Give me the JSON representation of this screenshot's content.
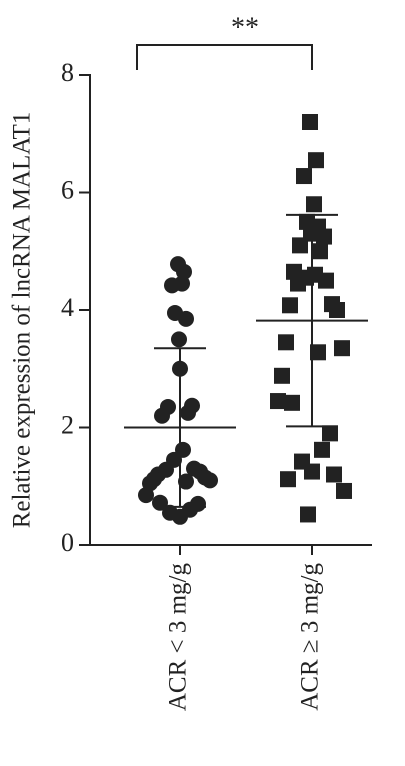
{
  "chart_data": {
    "type": "dotplot",
    "y_label": "Relative expression of lncRNA MALAT1",
    "categories": [
      "ACR < 3 mg/g",
      "ACR ≥ 3 mg/g"
    ],
    "groups": [
      {
        "marker": "circle",
        "color": "#222222",
        "mean": 2.0,
        "sd": 1.35,
        "values": [
          4.78,
          4.65,
          4.42,
          4.45,
          3.95,
          3.85,
          3.5,
          3.0,
          2.37,
          2.35,
          2.25,
          2.2,
          1.62,
          1.45,
          1.3,
          1.28,
          1.25,
          1.2,
          1.15,
          1.12,
          1.1,
          1.08,
          1.05,
          0.85,
          0.72,
          0.7,
          0.6,
          0.55,
          0.48
        ]
      },
      {
        "marker": "square",
        "color": "#222222",
        "mean": 3.82,
        "sd": 1.8,
        "values": [
          7.2,
          6.55,
          6.28,
          5.8,
          5.5,
          5.42,
          5.35,
          5.3,
          5.25,
          5.1,
          5.0,
          4.65,
          4.6,
          4.55,
          4.5,
          4.45,
          4.1,
          4.08,
          4.0,
          3.45,
          3.35,
          3.28,
          2.88,
          2.45,
          2.42,
          1.9,
          1.62,
          1.42,
          1.25,
          1.2,
          1.12,
          0.92,
          0.52
        ]
      }
    ],
    "annotation": "**",
    "ylim": [
      0,
      8
    ],
    "yticks": [
      0,
      2,
      4,
      6,
      8
    ]
  }
}
